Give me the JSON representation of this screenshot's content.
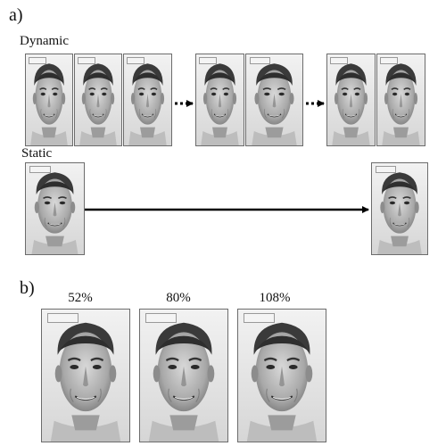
{
  "panel_a": {
    "label": "a)",
    "dynamic_label": "Dynamic",
    "static_label": "Static"
  },
  "panel_b": {
    "label": "b)",
    "intensity_labels": [
      "52%",
      "80%",
      "108%"
    ]
  },
  "colors": {
    "background": "#ffffff",
    "frame": "#6c6c6c",
    "arrow": "#000000"
  }
}
